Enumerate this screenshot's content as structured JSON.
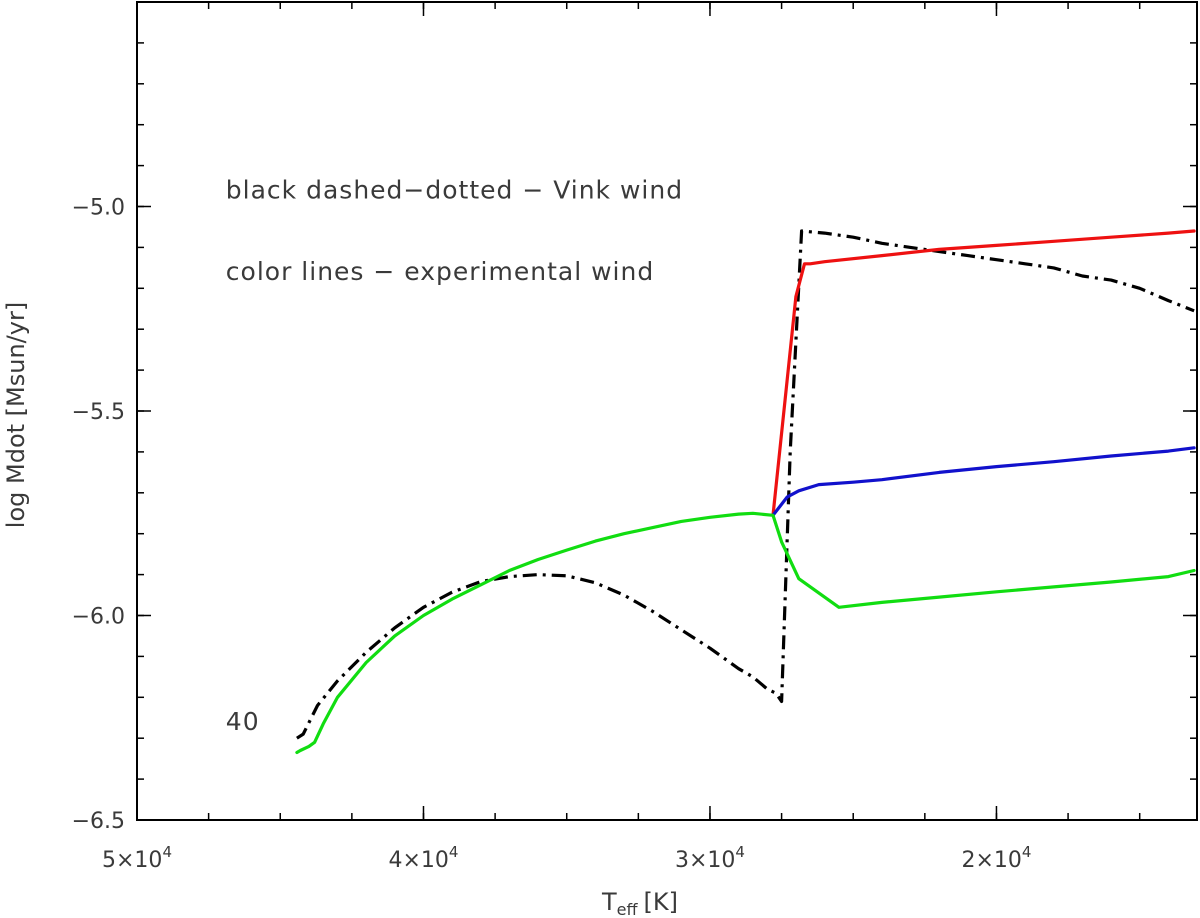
{
  "chart_data": {
    "type": "line",
    "xlabel": "T",
    "xlabel_sub": "eff",
    "xlabel_unit": "[K]",
    "ylabel": "log Mdot [Msun/yr]",
    "xlim": [
      50000,
      13000
    ],
    "ylim": [
      -6.5,
      -4.5
    ],
    "x_reversed": true,
    "grid": false,
    "x_ticks": [
      {
        "value": 50000,
        "mant": "5",
        "exp": "4"
      },
      {
        "value": 40000,
        "mant": "4",
        "exp": "4"
      },
      {
        "value": 30000,
        "mant": "3",
        "exp": "4"
      },
      {
        "value": 20000,
        "mant": "2",
        "exp": "4"
      }
    ],
    "x_minor_step": 2500,
    "y_ticks": [
      {
        "value": -6.5,
        "label": "−6.5"
      },
      {
        "value": -6.0,
        "label": "−6.0"
      },
      {
        "value": -5.5,
        "label": "−5.5"
      },
      {
        "value": -5.0,
        "label": "−5.0"
      }
    ],
    "y_minor_step": 0.1,
    "annotations": [
      {
        "text": "black dashed−dotted − Vink wind",
        "x": 46900,
        "y": -4.98
      },
      {
        "text": "color lines − experimental wind",
        "x": 46900,
        "y": -5.18
      },
      {
        "text": "40",
        "x": 46900,
        "y": -6.28
      }
    ],
    "series": [
      {
        "color": "#000000",
        "style": "dashdot",
        "x": [
          44420,
          44200,
          43700,
          43000,
          42000,
          41000,
          40000,
          39000,
          38000,
          37000,
          36000,
          35000,
          34000,
          33000,
          32000,
          31000,
          30000,
          29000,
          28500,
          28000,
          27700,
          27500,
          27200,
          26800,
          26000,
          25000,
          24000,
          23000,
          22000,
          21000,
          20000,
          19000,
          18000,
          17000,
          16000,
          15000,
          14000,
          13100
        ],
        "y": [
          -6.3,
          -6.29,
          -6.22,
          -6.16,
          -6.09,
          -6.03,
          -5.98,
          -5.943,
          -5.917,
          -5.905,
          -5.9,
          -5.903,
          -5.92,
          -5.95,
          -5.99,
          -6.035,
          -6.08,
          -6.13,
          -6.15,
          -6.18,
          -6.19,
          -6.21,
          -5.6,
          -5.06,
          -5.065,
          -5.075,
          -5.09,
          -5.1,
          -5.11,
          -5.12,
          -5.13,
          -5.14,
          -5.15,
          -5.17,
          -5.18,
          -5.2,
          -5.23,
          -5.255
        ]
      },
      {
        "color": "#ee1111",
        "style": "solid",
        "x": [
          27800,
          27000,
          26700,
          26500,
          26000,
          24000,
          22000,
          20000,
          18000,
          16000,
          14000,
          13100
        ],
        "y": [
          -5.755,
          -5.22,
          -5.14,
          -5.14,
          -5.135,
          -5.12,
          -5.105,
          -5.095,
          -5.085,
          -5.075,
          -5.065,
          -5.06
        ]
      },
      {
        "color": "#1111cc",
        "style": "solid",
        "x": [
          27800,
          27300,
          26900,
          26200,
          25000,
          24000,
          22000,
          20000,
          18000,
          16000,
          14000,
          13100
        ],
        "y": [
          -5.755,
          -5.71,
          -5.695,
          -5.68,
          -5.674,
          -5.668,
          -5.65,
          -5.636,
          -5.624,
          -5.61,
          -5.598,
          -5.59
        ]
      },
      {
        "color": "#11dd11",
        "style": "solid",
        "x": [
          44420,
          44300,
          44000,
          43800,
          43500,
          43000,
          42000,
          41000,
          40000,
          39000,
          38000,
          37000,
          36000,
          35000,
          34000,
          33000,
          32000,
          31000,
          30000,
          29000,
          28500,
          27800,
          27500,
          26900,
          25500,
          24000,
          22000,
          20000,
          18000,
          16000,
          14000,
          13100
        ],
        "y": [
          -6.335,
          -6.33,
          -6.32,
          -6.31,
          -6.265,
          -6.2,
          -6.115,
          -6.05,
          -6.0,
          -5.96,
          -5.925,
          -5.89,
          -5.863,
          -5.84,
          -5.818,
          -5.8,
          -5.785,
          -5.77,
          -5.76,
          -5.752,
          -5.75,
          -5.755,
          -5.82,
          -5.91,
          -5.98,
          -5.968,
          -5.955,
          -5.942,
          -5.93,
          -5.918,
          -5.905,
          -5.89
        ]
      }
    ]
  }
}
